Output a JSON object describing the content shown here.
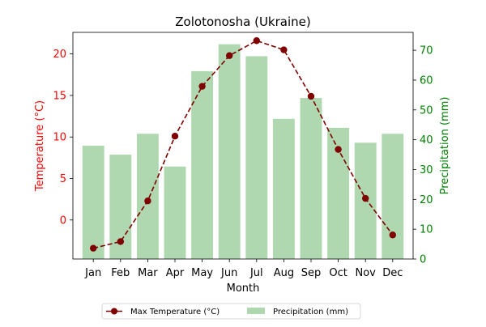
{
  "chart_data": {
    "type": "bar",
    "title": "Zolotonosha (Ukraine)",
    "xlabel": "Month",
    "categories": [
      "Jan",
      "Feb",
      "Mar",
      "Apr",
      "May",
      "Jun",
      "Jul",
      "Aug",
      "Sep",
      "Oct",
      "Nov",
      "Dec"
    ],
    "y_left": {
      "label": "Temperature (°C)",
      "color": "#ff0000",
      "ylim": [
        -4.7,
        22.6
      ],
      "ticks": [
        0,
        5,
        10,
        15,
        20
      ]
    },
    "y_right": {
      "label": "Precipitation (mm)",
      "color": "#008000",
      "ylim": [
        0,
        76
      ],
      "ticks": [
        0,
        10,
        20,
        30,
        40,
        50,
        60,
        70
      ]
    },
    "series": [
      {
        "name": "Max Temperature (°C)",
        "type": "line",
        "axis": "left",
        "color": "#800000",
        "style": "dashed",
        "marker": "circle",
        "values": [
          -3.4,
          -2.6,
          2.3,
          10.1,
          16.1,
          19.8,
          21.6,
          20.5,
          14.9,
          8.5,
          2.6,
          -1.8
        ]
      },
      {
        "name": "Precipitation (mm)",
        "type": "bar",
        "axis": "right",
        "color": "#b0d8b0",
        "values": [
          38,
          35,
          42,
          31,
          63,
          72,
          68,
          47,
          54,
          44,
          39,
          42
        ]
      }
    ],
    "grid": false,
    "legend": "bottom-center"
  }
}
